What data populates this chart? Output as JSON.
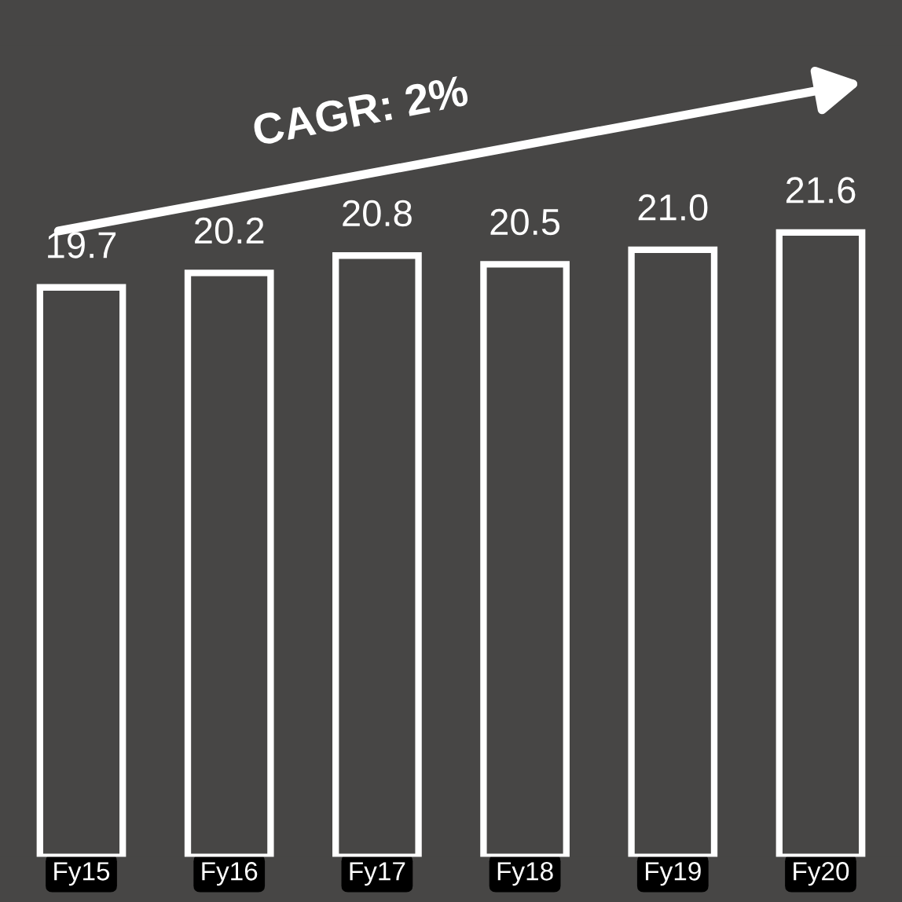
{
  "chart_data": {
    "type": "bar",
    "categories": [
      "Fy15",
      "Fy16",
      "Fy17",
      "Fy18",
      "Fy19",
      "Fy20"
    ],
    "values": [
      19.7,
      20.2,
      20.8,
      20.5,
      21.0,
      21.6
    ],
    "color": "#474645",
    "value_labels": [
      "19.7",
      "20.2",
      "20.8",
      "20.5",
      "21.0",
      "21.6"
    ],
    "grid": false,
    "legend": false,
    "annotations": [
      "CAGR: 2%"
    ]
  }
}
